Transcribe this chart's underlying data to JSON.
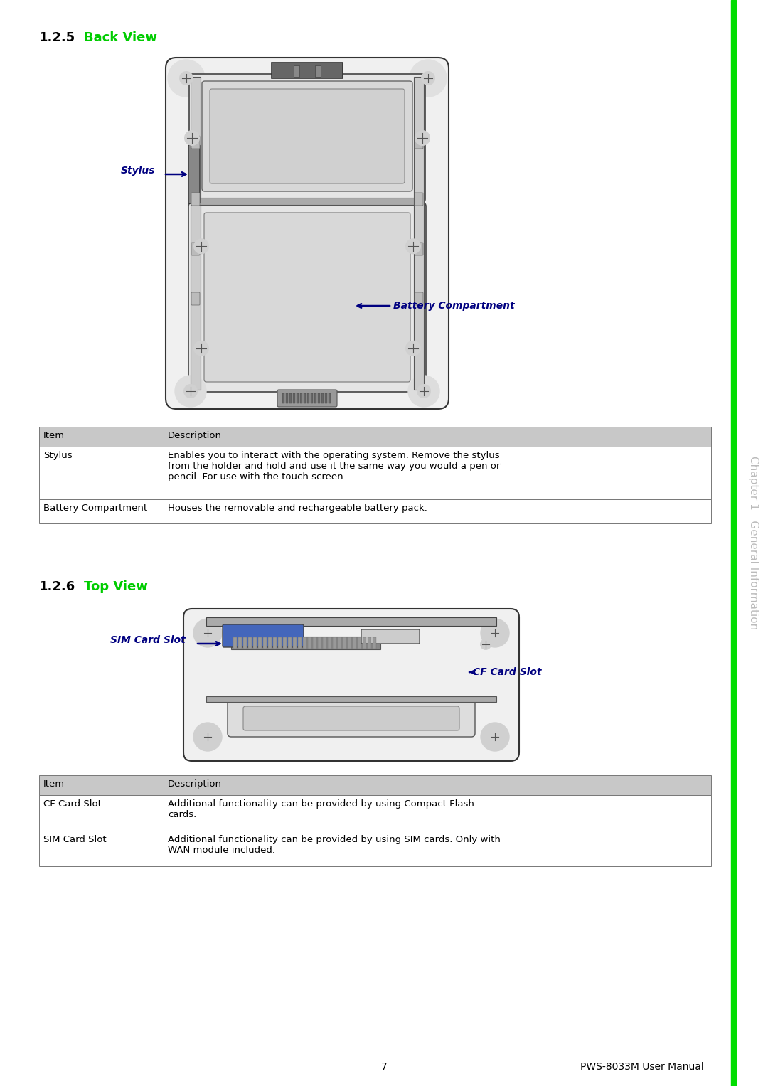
{
  "page_bg": "#ffffff",
  "sidebar_color": "#00dd00",
  "sidebar_text": "Chapter 1   General Information",
  "sidebar_text_color": "#bbbbbb",
  "section1_number": "1.2.5",
  "section1_title": "Back View",
  "section1_title_color": "#00cc00",
  "section1_number_color": "#000000",
  "section2_number": "1.2.6",
  "section2_title": "Top View",
  "section2_title_color": "#00cc00",
  "section2_number_color": "#000000",
  "stylus_label": "Stylus",
  "battery_label": "Battery Compartment",
  "sim_label": "SIM Card Slot",
  "cf_label": "CF Card Slot",
  "label_color": "#000080",
  "table1_header": [
    "Item",
    "Description"
  ],
  "table1_rows": [
    [
      "Stylus",
      "Enables you to interact with the operating system. Remove the stylus\nfrom the holder and hold and use it the same way you would a pen or\npencil. For use with the touch screen.."
    ],
    [
      "Battery Compartment",
      "Houses the removable and rechargeable battery pack."
    ]
  ],
  "table2_header": [
    "Item",
    "Description"
  ],
  "table2_rows": [
    [
      "CF Card Slot",
      "Additional functionality can be provided by using Compact Flash\ncards."
    ],
    [
      "SIM Card Slot",
      "Additional functionality can be provided by using SIM cards. Only with\nWAN module included."
    ]
  ],
  "table_header_bg": "#c8c8c8",
  "table_border_color": "#777777",
  "table_text_color": "#000000",
  "footer_page": "7",
  "footer_text": "PWS-8033M User Manual",
  "footer_color": "#000000"
}
